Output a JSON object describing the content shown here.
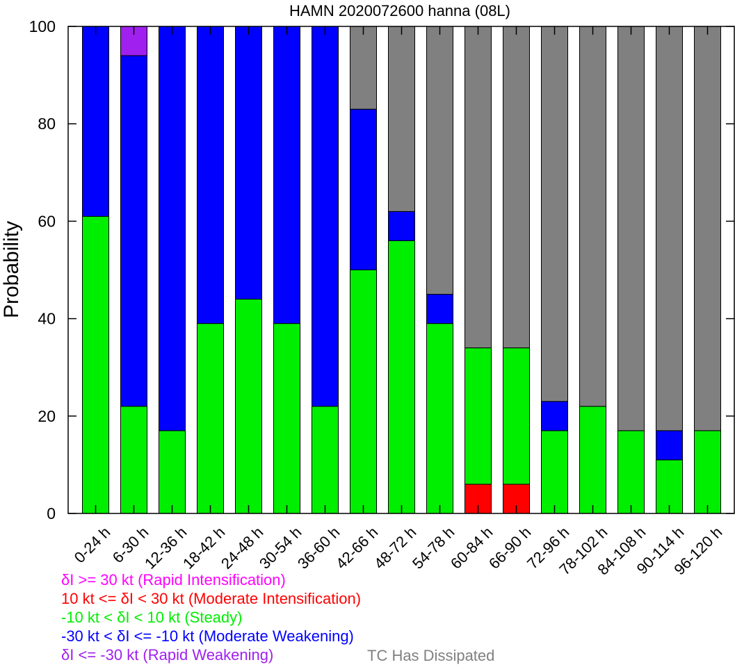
{
  "chart_data": {
    "type": "bar",
    "stacked": true,
    "title": "HAMN 2020072600 hanna (08L)",
    "ylabel": "Probability",
    "xlabel": "",
    "ylim": [
      0,
      100
    ],
    "yticks": [
      "0",
      "20",
      "40",
      "60",
      "80",
      "100"
    ],
    "categories": [
      "0-24 h",
      "6-30 h",
      "12-36 h",
      "18-42 h",
      "24-48 h",
      "30-54 h",
      "36-60 h",
      "42-66 h",
      "48-72 h",
      "54-78 h",
      "60-84 h",
      "66-90 h",
      "72-96 h",
      "78-102 h",
      "84-108 h",
      "90-114 h",
      "96-120 h"
    ],
    "series": [
      {
        "key": "moderate_intensification",
        "color": "#ff0000",
        "values": [
          0,
          0,
          0,
          0,
          0,
          0,
          0,
          0,
          0,
          0,
          6,
          6,
          0,
          0,
          0,
          0,
          0
        ]
      },
      {
        "key": "steady",
        "color": "#00ee00",
        "values": [
          61,
          22,
          17,
          39,
          44,
          39,
          22,
          50,
          56,
          39,
          28,
          28,
          17,
          22,
          17,
          11,
          17
        ]
      },
      {
        "key": "moderate_weakening",
        "color": "#0000ff",
        "values": [
          39,
          72,
          83,
          61,
          56,
          61,
          78,
          33,
          6,
          6,
          0,
          0,
          6,
          0,
          0,
          6,
          0
        ]
      },
      {
        "key": "rapid_weakening",
        "color": "#a020f0",
        "values": [
          0,
          6,
          0,
          0,
          0,
          0,
          0,
          0,
          0,
          0,
          0,
          0,
          0,
          0,
          0,
          0,
          0
        ]
      },
      {
        "key": "dissipated",
        "color": "#808080",
        "values": [
          0,
          0,
          0,
          0,
          0,
          0,
          0,
          17,
          38,
          55,
          66,
          66,
          77,
          78,
          83,
          83,
          83
        ]
      }
    ],
    "legend": [
      {
        "label": "δI >= 30 kt (Rapid Intensification)",
        "color": "#ff00ff"
      },
      {
        "label": "10 kt <= δI < 30 kt (Moderate Intensification)",
        "color": "#ff0000"
      },
      {
        "label": "-10 kt < δI < 10 kt (Steady)",
        "color": "#00ee00"
      },
      {
        "label": "-30 kt < δI <= -10 kt (Moderate Weakening)",
        "color": "#0000ff"
      },
      {
        "label": "δI <= -30 kt (Rapid Weakening)",
        "color": "#a020f0"
      }
    ],
    "dissipated_label": {
      "label": "TC Has Dissipated",
      "color": "#808080"
    },
    "grid": false,
    "legend_placement": "bottom-left"
  }
}
